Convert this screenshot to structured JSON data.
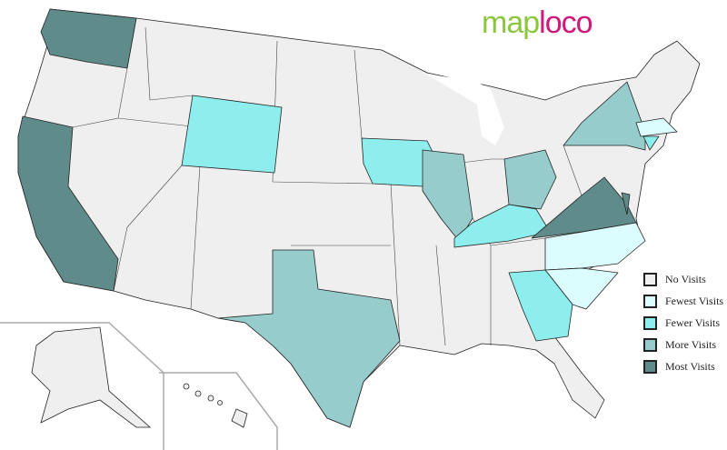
{
  "logo": {
    "part1": "map",
    "part2": "loco"
  },
  "legend": [
    {
      "label": "No Visits",
      "color": "#efefef"
    },
    {
      "label": "Fewest Visits",
      "color": "#dcfdfd"
    },
    {
      "label": "Fewer Visits",
      "color": "#8eeeee"
    },
    {
      "label": "More Visits",
      "color": "#96cccc"
    },
    {
      "label": "Most Visits",
      "color": "#5f8b8b"
    }
  ],
  "states": {
    "most": [
      "Washington",
      "California",
      "Virginia",
      "Delaware"
    ],
    "more": [
      "New York",
      "Illinois",
      "Ohio",
      "Texas"
    ],
    "fewer": [
      "Wyoming",
      "Iowa",
      "Kentucky",
      "Georgia",
      "Connecticut"
    ],
    "fewest": [
      "Massachusetts",
      "North Carolina",
      "South Carolina"
    ]
  }
}
